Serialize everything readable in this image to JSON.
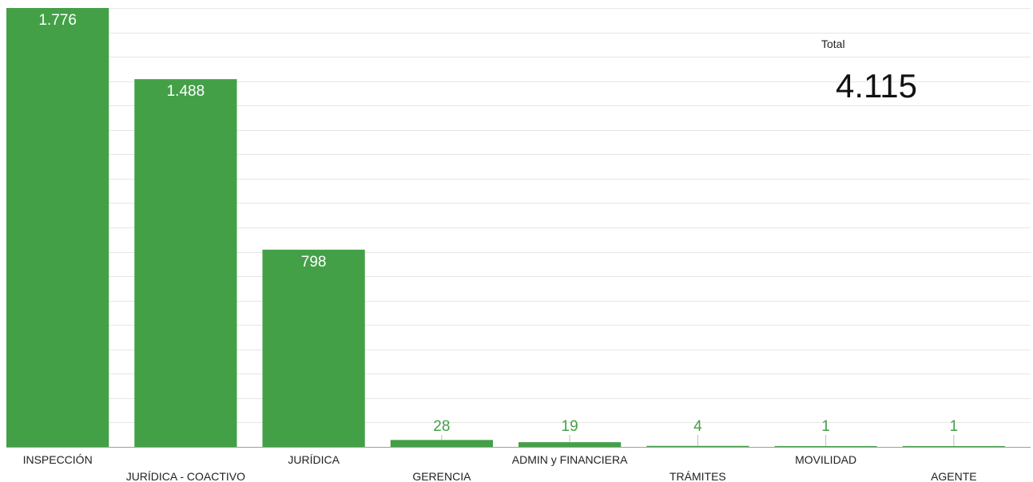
{
  "chart_data": {
    "type": "bar",
    "categories": [
      "INSPECCIÓN",
      "JURÍDICA - COACTIVO",
      "JURÍDICA",
      "GERENCIA",
      "ADMIN y FINANCIERA",
      "TRÁMITES",
      "MOVILIDAD",
      "AGENTE"
    ],
    "values": [
      1776,
      1488,
      798,
      28,
      19,
      4,
      1,
      1
    ],
    "value_labels": [
      "1.776",
      "1.488",
      "798",
      "28",
      "19",
      "4",
      "1",
      "1"
    ],
    "title": "",
    "xlabel": "",
    "ylabel": "",
    "ylim": [
      0,
      1776
    ],
    "grid": true,
    "bar_color": "#43a047",
    "grid_color": "#e6e6e6",
    "label_color_inside": "#ffffff",
    "label_color_outside": "#43a047"
  },
  "scorecard": {
    "label": "Total",
    "value": "4.115"
  }
}
